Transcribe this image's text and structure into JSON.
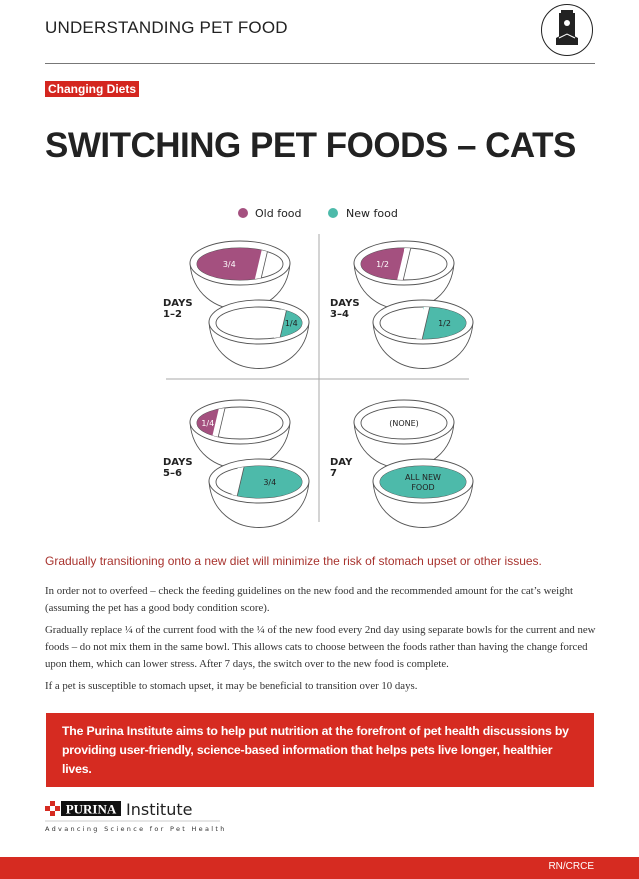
{
  "header": {
    "title": "UNDERSTANDING PET FOOD",
    "icon": "pet-food-bag-icon"
  },
  "tag": "Changing Diets",
  "title": "SWITCHING PET FOODS – CATS",
  "legend": {
    "old": {
      "label": "Old food",
      "color": "#a4507f"
    },
    "new": {
      "label": "New food",
      "color": "#4dbaaa"
    }
  },
  "stages": [
    {
      "label_line1": "DAYS",
      "label_line2": "1–2",
      "old_fraction": 0.75,
      "old_label": "3/4",
      "new_fraction": 0.25,
      "new_label": "1/4"
    },
    {
      "label_line1": "DAYS",
      "label_line2": "3–4",
      "old_fraction": 0.5,
      "old_label": "1/2",
      "new_fraction": 0.5,
      "new_label": "1/2"
    },
    {
      "label_line1": "DAYS",
      "label_line2": "5–6",
      "old_fraction": 0.25,
      "old_label": "1/4",
      "new_fraction": 0.75,
      "new_label": "3/4"
    },
    {
      "label_line1": "DAY",
      "label_line2": "7",
      "old_fraction": 0,
      "old_label": "(NONE)",
      "new_fraction": 1,
      "new_label": "ALL NEW FOOD"
    }
  ],
  "lead": "Gradually transitioning onto a new diet will minimize the risk of stomach upset or other issues.",
  "paragraphs": [
    "In order not to overfeed – check the feeding guidelines on the new food and the recommended amount for the cat’s weight (assuming the pet has a good body condition score).",
    "Gradually replace ¼ of the current food with the ¼ of the new food every 2nd day using separate bowls for the current and new foods – do not mix them in the same bowl. This allows cats to choose between the foods rather than having the change forced upon them, which can lower stress. After 7 days, the switch over to the new food is complete.",
    "If a pet is susceptible to stomach upset, it may be beneficial to transition over 10 days."
  ],
  "banner": "The Purina Institute aims to help put nutrition at the forefront of pet health discussions by providing user-friendly, science-based information that helps pets live longer, healthier lives.",
  "logo": {
    "brand": "PURINA",
    "name": "Institute",
    "tagline": "Advancing Science for Pet Health"
  },
  "footer": {
    "code": "RN/CRCE"
  },
  "colors": {
    "accent_red": "#d62b21",
    "text_dark": "#222222"
  }
}
